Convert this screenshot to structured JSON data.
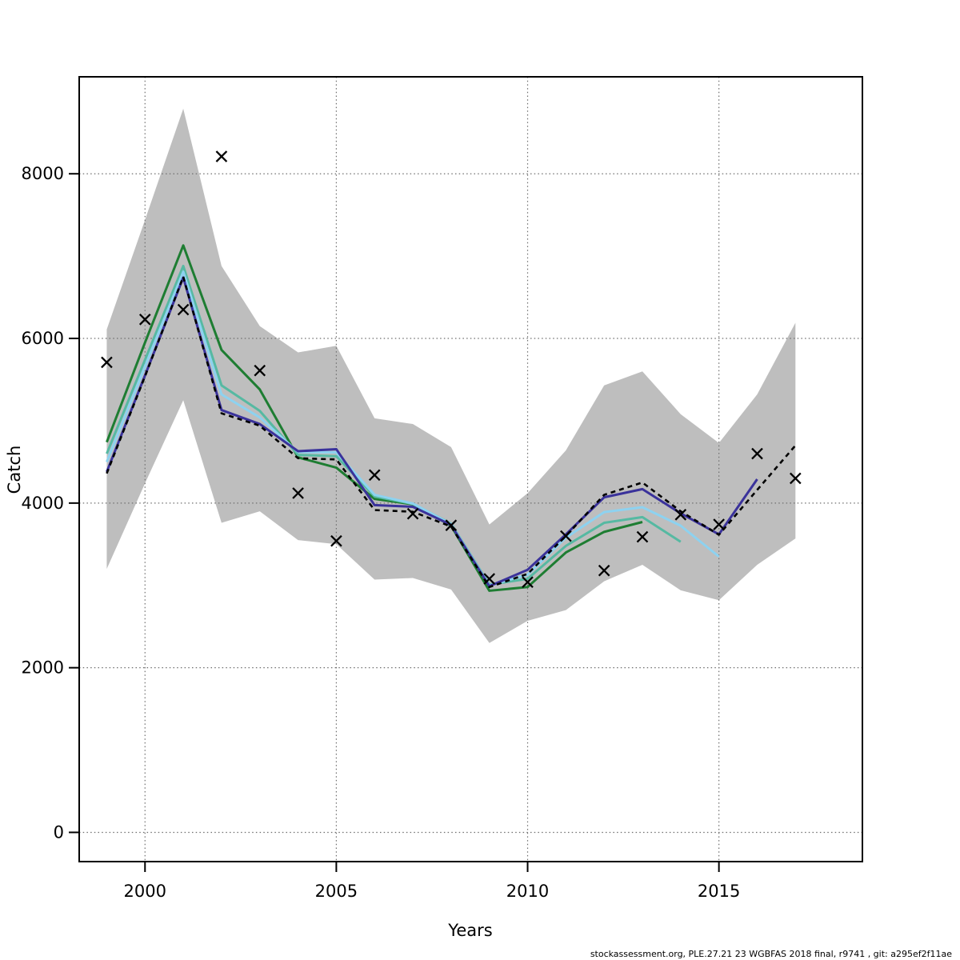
{
  "footer": "stockassessment.org, PLE.27.21 23 WGBFAS 2018 final, r9741 , git: a295ef2f11ae",
  "chart_data": {
    "type": "line",
    "title": "",
    "xlabel": "Years",
    "ylabel": "Catch",
    "xlim": [
      1998.28,
      2018.75
    ],
    "ylim": [
      -355,
      9178
    ],
    "grid": true,
    "legend_position": "none",
    "x_ticks": [
      2000,
      2005,
      2010,
      2015
    ],
    "x_tick_labels": [
      "2000",
      "2005",
      "2010",
      "2015"
    ],
    "y_ticks": [
      0,
      2000,
      4000,
      6000,
      8000
    ],
    "y_tick_labels": [
      "0",
      "2000",
      "4000",
      "6000",
      "8000"
    ],
    "colors": {
      "band": "#bebebe",
      "grid": "#6e6e6e",
      "frame": "#000000",
      "marker": "#000000"
    },
    "band": {
      "name": "confidence-band",
      "years": [
        1999,
        2000,
        2001,
        2002,
        2003,
        2004,
        2005,
        2006,
        2007,
        2008,
        2009,
        2010,
        2011,
        2012,
        2013,
        2014,
        2015,
        2016,
        2017
      ],
      "low": [
        3200,
        4240,
        5250,
        3760,
        3900,
        3550,
        3500,
        3070,
        3090,
        2950,
        2300,
        2570,
        2700,
        3050,
        3250,
        2940,
        2820,
        3250,
        3570
      ],
      "high": [
        6110,
        7440,
        8790,
        6880,
        6150,
        5830,
        5910,
        5030,
        4960,
        4680,
        3740,
        4120,
        4640,
        5430,
        5600,
        5080,
        4730,
        5320,
        6190
      ]
    },
    "series": [
      {
        "name": "retro-run-ending-2013",
        "color": "#1e7d32",
        "dash": "solid",
        "years": [
          1999,
          2000,
          2001,
          2002,
          2003,
          2004,
          2005,
          2006,
          2007,
          2008,
          2009,
          2010,
          2011,
          2012,
          2013
        ],
        "values": [
          4740,
          5950,
          7130,
          5860,
          5380,
          4555,
          4430,
          4050,
          3985,
          3725,
          2935,
          2980,
          3400,
          3650,
          3770
        ]
      },
      {
        "name": "retro-run-ending-2014",
        "color": "#56b9a2",
        "dash": "solid",
        "years": [
          1999,
          2000,
          2001,
          2002,
          2003,
          2004,
          2005,
          2006,
          2007,
          2008,
          2009,
          2010,
          2011,
          2012,
          2013,
          2014
        ],
        "values": [
          4600,
          5740,
          6880,
          5430,
          5120,
          4585,
          4570,
          4080,
          3990,
          3750,
          3010,
          3080,
          3480,
          3760,
          3830,
          3530
        ]
      },
      {
        "name": "retro-run-ending-2015",
        "color": "#8dd2f0",
        "dash": "solid",
        "years": [
          1999,
          2000,
          2001,
          2002,
          2003,
          2004,
          2005,
          2006,
          2007,
          2008,
          2009,
          2010,
          2011,
          2012,
          2013,
          2014,
          2015
        ],
        "values": [
          4500,
          5660,
          6810,
          5320,
          5040,
          4620,
          4615,
          4100,
          3995,
          3745,
          3000,
          3130,
          3580,
          3890,
          3950,
          3725,
          3350
        ]
      },
      {
        "name": "retro-run-ending-2016",
        "color": "#3a329b",
        "dash": "solid",
        "years": [
          1999,
          2000,
          2001,
          2002,
          2003,
          2004,
          2005,
          2006,
          2007,
          2008,
          2009,
          2010,
          2011,
          2012,
          2013,
          2014,
          2015,
          2016
        ],
        "values": [
          4380,
          5550,
          6740,
          5130,
          4960,
          4630,
          4655,
          3975,
          3955,
          3735,
          2990,
          3190,
          3620,
          4070,
          4170,
          3875,
          3620,
          4290
        ]
      },
      {
        "name": "final-run-2018-assessment",
        "color": "#000000",
        "dash": "dashed",
        "years": [
          1999,
          2000,
          2001,
          2002,
          2003,
          2004,
          2005,
          2006,
          2007,
          2008,
          2009,
          2010,
          2011,
          2012,
          2013,
          2014,
          2015,
          2016,
          2017
        ],
        "values": [
          4360,
          5540,
          6750,
          5090,
          4940,
          4545,
          4530,
          3915,
          3895,
          3715,
          2980,
          3140,
          3600,
          4100,
          4250,
          3900,
          3615,
          4160,
          4700
        ]
      }
    ],
    "points": {
      "name": "observed-catch",
      "marker": "x",
      "color": "#000000",
      "years": [
        1999,
        2000,
        2001,
        2002,
        2003,
        2004,
        2005,
        2006,
        2007,
        2008,
        2009,
        2010,
        2011,
        2012,
        2013,
        2014,
        2015,
        2016,
        2017
      ],
      "values": [
        5710,
        6230,
        6350,
        8210,
        5610,
        4120,
        3540,
        4340,
        3870,
        3730,
        3080,
        3040,
        3600,
        3180,
        3590,
        3860,
        3740,
        4600,
        4300
      ]
    }
  }
}
